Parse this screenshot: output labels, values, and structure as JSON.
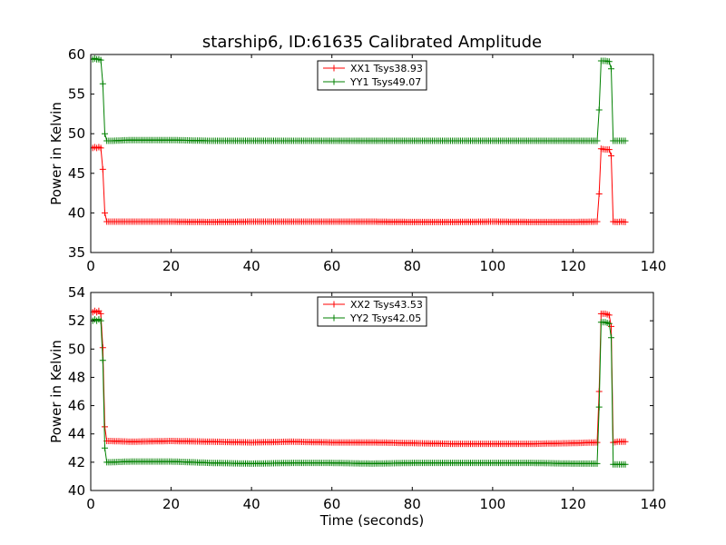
{
  "figure": {
    "title": "starship6, ID:61635 Calibrated Amplitude",
    "xlabel": "Time (seconds)"
  },
  "colors": {
    "series1": "#ff0000",
    "series2": "#008000"
  },
  "chart_data": [
    {
      "type": "line",
      "title": "starship6, ID:61635 Calibrated Amplitude",
      "xlabel": "",
      "ylabel": "Power in Kelvin",
      "xlim": [
        0,
        140
      ],
      "ylim": [
        35,
        60
      ],
      "xticks": [
        0,
        20,
        40,
        60,
        80,
        100,
        120,
        140
      ],
      "yticks": [
        35,
        40,
        45,
        50,
        55,
        60
      ],
      "grid": false,
      "legend_position": "top-center",
      "marker": "+",
      "series": [
        {
          "name": "XX1 Tsys38.93",
          "color": "#ff0000",
          "x": [
            0.5,
            1,
            1.5,
            2,
            2.5,
            3,
            3.5,
            4,
            5,
            10,
            20,
            30,
            40,
            50,
            60,
            70,
            80,
            90,
            100,
            110,
            120,
            126,
            126.5,
            127,
            128,
            129,
            129.5,
            130,
            131,
            132,
            133
          ],
          "y": [
            48.2,
            48.3,
            48.2,
            48.3,
            48.2,
            45.5,
            40.0,
            38.9,
            38.9,
            38.9,
            38.9,
            38.85,
            38.9,
            38.9,
            38.9,
            38.9,
            38.85,
            38.85,
            38.9,
            38.85,
            38.85,
            38.9,
            42.4,
            48.1,
            48.0,
            48.0,
            47.2,
            38.9,
            38.85,
            38.9,
            38.85
          ]
        },
        {
          "name": "YY1 Tsys49.07",
          "color": "#008000",
          "x": [
            0.5,
            1,
            1.5,
            2,
            2.5,
            3,
            3.5,
            4,
            5,
            10,
            20,
            30,
            40,
            50,
            60,
            70,
            80,
            90,
            100,
            110,
            120,
            126,
            126.5,
            127,
            128,
            129,
            129.5,
            130,
            131,
            132,
            133
          ],
          "y": [
            59.4,
            59.5,
            59.4,
            59.4,
            59.3,
            56.3,
            50.0,
            49.1,
            49.1,
            49.2,
            49.2,
            49.1,
            49.1,
            49.1,
            49.1,
            49.1,
            49.1,
            49.1,
            49.1,
            49.1,
            49.1,
            49.1,
            53.0,
            59.2,
            59.2,
            59.1,
            58.2,
            49.1,
            49.1,
            49.1,
            49.1
          ]
        }
      ]
    },
    {
      "type": "line",
      "title": "",
      "xlabel": "Time (seconds)",
      "ylabel": "Power in Kelvin",
      "xlim": [
        0,
        140
      ],
      "ylim": [
        40,
        54
      ],
      "xticks": [
        0,
        20,
        40,
        60,
        80,
        100,
        120,
        140
      ],
      "yticks": [
        40,
        42,
        44,
        46,
        48,
        50,
        52,
        54
      ],
      "grid": false,
      "legend_position": "top-center",
      "marker": "+",
      "series": [
        {
          "name": "XX2 Tsys43.53",
          "color": "#ff0000",
          "x": [
            0.5,
            1,
            1.5,
            2,
            2.5,
            3,
            3.5,
            4,
            5,
            10,
            20,
            30,
            40,
            50,
            60,
            70,
            80,
            90,
            100,
            110,
            120,
            126,
            126.5,
            127,
            128,
            129,
            129.5,
            130,
            131,
            132,
            133
          ],
          "y": [
            52.6,
            52.7,
            52.6,
            52.7,
            52.5,
            50.1,
            44.5,
            43.5,
            43.5,
            43.45,
            43.5,
            43.45,
            43.4,
            43.45,
            43.4,
            43.4,
            43.35,
            43.3,
            43.3,
            43.3,
            43.35,
            43.4,
            47.0,
            52.5,
            52.5,
            52.4,
            51.6,
            43.4,
            43.45,
            43.45,
            43.45
          ]
        },
        {
          "name": "YY2 Tsys42.05",
          "color": "#008000",
          "x": [
            0.5,
            1,
            1.5,
            2,
            2.5,
            3,
            3.5,
            4,
            5,
            10,
            20,
            30,
            40,
            50,
            60,
            70,
            80,
            90,
            100,
            110,
            120,
            126,
            126.5,
            127,
            128,
            129,
            129.5,
            130,
            131,
            132,
            133
          ],
          "y": [
            52.0,
            52.1,
            52.0,
            52.1,
            52.0,
            49.2,
            43.0,
            42.0,
            42.0,
            42.05,
            42.05,
            41.95,
            41.9,
            41.95,
            41.95,
            41.9,
            41.95,
            41.95,
            41.95,
            41.95,
            41.9,
            41.9,
            45.9,
            51.9,
            51.9,
            51.8,
            50.8,
            41.85,
            41.85,
            41.85,
            41.85
          ]
        }
      ]
    }
  ]
}
